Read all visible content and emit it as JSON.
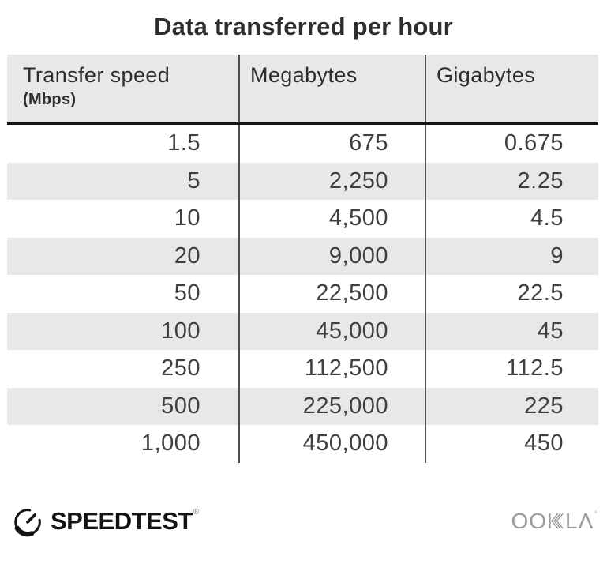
{
  "title": "Data transferred per hour",
  "chart_data": {
    "type": "table",
    "title": "Data transferred per hour",
    "columns": [
      "Transfer speed (Mbps)",
      "Megabytes",
      "Gigabytes"
    ],
    "rows": [
      [
        1.5,
        675,
        0.675
      ],
      [
        5,
        2250,
        2.25
      ],
      [
        10,
        4500,
        4.5
      ],
      [
        20,
        9000,
        9
      ],
      [
        50,
        22500,
        22.5
      ],
      [
        100,
        45000,
        45
      ],
      [
        250,
        112500,
        112.5
      ],
      [
        500,
        225000,
        225
      ],
      [
        1000,
        450000,
        450
      ]
    ]
  },
  "table": {
    "header": {
      "col1_label": "Transfer speed",
      "col1_sublabel": "(Mbps)",
      "col2_label": "Megabytes",
      "col3_label": "Gigabytes"
    },
    "rows": [
      [
        "1.5",
        "675",
        "0.675"
      ],
      [
        "5",
        "2,250",
        "2.25"
      ],
      [
        "10",
        "4,500",
        "4.5"
      ],
      [
        "20",
        "9,000",
        "9"
      ],
      [
        "50",
        "22,500",
        "22.5"
      ],
      [
        "100",
        "45,000",
        "45"
      ],
      [
        "250",
        "112,500",
        "112.5"
      ],
      [
        "500",
        "225,000",
        "225"
      ],
      [
        "1,000",
        "450,000",
        "450"
      ]
    ]
  },
  "footer": {
    "speedtest_label": "SPEEDTEST",
    "speedtest_mark": "®",
    "ookla_left": "OO",
    "ookla_right": "LΛ",
    "ookla_mark": "ʼ"
  },
  "colors": {
    "header_bg": "#E8E8EA",
    "alt_row_bg": "#E8E8EB",
    "divider": "#4D4D4D",
    "header_underline": "#151515",
    "title_text": "#2E2E32",
    "number_text": "#3F3F3F",
    "speedtest_black": "#141414",
    "ookla_gray": "#9B9B9B"
  }
}
